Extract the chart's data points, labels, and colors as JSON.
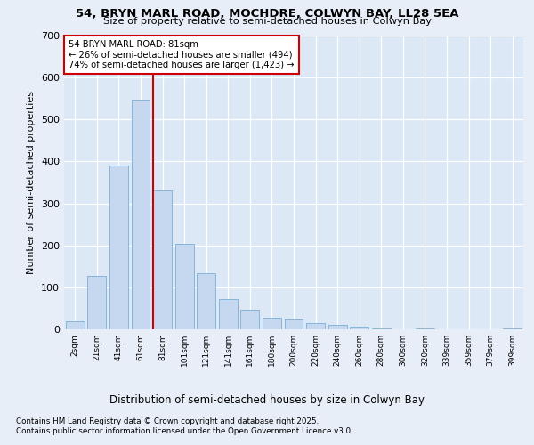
{
  "title_line1": "54, BRYN MARL ROAD, MOCHDRE, COLWYN BAY, LL28 5EA",
  "title_line2": "Size of property relative to semi-detached houses in Colwyn Bay",
  "xlabel": "Distribution of semi-detached houses by size in Colwyn Bay",
  "ylabel": "Number of semi-detached properties",
  "categories": [
    "2sqm",
    "21sqm",
    "41sqm",
    "61sqm",
    "81sqm",
    "101sqm",
    "121sqm",
    "141sqm",
    "161sqm",
    "180sqm",
    "200sqm",
    "220sqm",
    "240sqm",
    "260sqm",
    "280sqm",
    "300sqm",
    "320sqm",
    "339sqm",
    "359sqm",
    "379sqm",
    "399sqm"
  ],
  "values": [
    20,
    128,
    390,
    548,
    330,
    204,
    133,
    72,
    46,
    28,
    25,
    14,
    10,
    6,
    2,
    0,
    3,
    0,
    0,
    0,
    3
  ],
  "bar_color": "#c5d8f0",
  "bar_edge_color": "#7aafd4",
  "highlight_index": 4,
  "highlight_line_color": "#cc0000",
  "annotation_text": "54 BRYN MARL ROAD: 81sqm\n← 26% of semi-detached houses are smaller (494)\n74% of semi-detached houses are larger (1,423) →",
  "annotation_box_color": "#ffffff",
  "annotation_box_edge_color": "#cc0000",
  "ylim": [
    0,
    700
  ],
  "yticks": [
    0,
    100,
    200,
    300,
    400,
    500,
    600,
    700
  ],
  "footnote1": "Contains HM Land Registry data © Crown copyright and database right 2025.",
  "footnote2": "Contains public sector information licensed under the Open Government Licence v3.0.",
  "bg_color": "#e8eef8",
  "plot_bg_color": "#dce8f5"
}
